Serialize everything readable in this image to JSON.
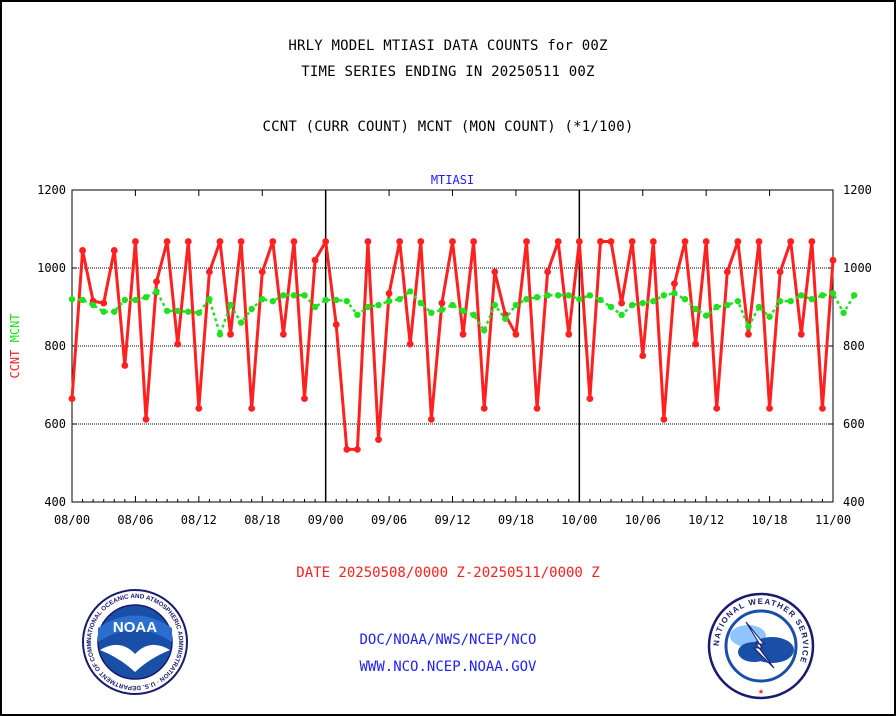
{
  "title_line1": "HRLY MODEL MTIASI DATA COUNTS for 00Z",
  "title_line2": "TIME SERIES ENDING IN 20250511 00Z",
  "subtitle": "CCNT (CURR COUNT) MCNT (MON COUNT) (*1/100)",
  "date_range": "DATE 20250508/0000 Z-20250511/0000 Z",
  "credit_line1": "DOC/NOAA/NWS/NCEP/NCO",
  "credit_line2": "WWW.NCO.NCEP.NOAA.GOV",
  "logos": {
    "left_icon": "noaa-seal-icon",
    "left_text": "NOAA",
    "left_ring_text": "NATIONAL OCEANIC AND ATMOSPHERIC ADMINISTRATION · U.S. DEPARTMENT OF COMMERCE",
    "right_icon": "national-weather-service-icon",
    "right_ring_text": "NATIONAL WEATHER SERVICE"
  },
  "colors": {
    "ccnt": "#ff2020",
    "mcnt": "#20e020",
    "panel_title": "#2020ff",
    "text": "#000000"
  },
  "chart_data": {
    "type": "line",
    "title": "MTIASI",
    "ylabel_parts": [
      {
        "text": "CCNT",
        "color": "#ff2020"
      },
      {
        "text": "MCNT",
        "color": "#20e020"
      }
    ],
    "ylim": [
      400,
      1200
    ],
    "yticks": [
      400,
      600,
      800,
      1000,
      1200
    ],
    "gridlines_y": [
      600,
      800,
      1000
    ],
    "x_tick_labels": [
      "08/00",
      "08/06",
      "08/12",
      "08/18",
      "09/00",
      "09/06",
      "09/12",
      "09/18",
      "10/00",
      "10/06",
      "10/12",
      "10/18",
      "11/00"
    ],
    "x_hours_range": [
      0,
      72
    ],
    "day_dividers_hours": [
      24,
      48
    ],
    "series": [
      {
        "name": "CCNT",
        "color": "#ff2020",
        "style": "solid",
        "values": [
          665,
          1045,
          915,
          910,
          1045,
          750,
          1068,
          612,
          965,
          1068,
          805,
          1068,
          640,
          990,
          1068,
          830,
          1068,
          640,
          990,
          1068,
          830,
          1068,
          665,
          1020,
          1068,
          855,
          535,
          535,
          1068,
          560,
          935,
          1068,
          805,
          1068,
          612,
          910,
          1068,
          830,
          1068,
          640,
          990,
          880,
          830,
          1068,
          640,
          990,
          1068,
          830,
          1068,
          665,
          1068,
          1068,
          910,
          1068,
          775,
          1068,
          612,
          960,
          1068,
          805,
          1068,
          640,
          990,
          1068,
          830,
          1068,
          640,
          990,
          1068,
          830,
          1068,
          640,
          1020
        ]
      },
      {
        "name": "MCNT",
        "color": "#20e020",
        "style": "dotted",
        "values": [
          920,
          918,
          905,
          888,
          888,
          918,
          918,
          925,
          940,
          890,
          890,
          888,
          885,
          920,
          830,
          905,
          860,
          895,
          920,
          915,
          930,
          930,
          930,
          900,
          918,
          918,
          915,
          880,
          900,
          905,
          915,
          920,
          940,
          910,
          885,
          893,
          905,
          890,
          880,
          840,
          905,
          870,
          905,
          920,
          925,
          930,
          930,
          930,
          920,
          930,
          918,
          900,
          880,
          905,
          910,
          915,
          930,
          935,
          920,
          895,
          878,
          900,
          905,
          915,
          850,
          900,
          875,
          915,
          915,
          930,
          920,
          930,
          935,
          885,
          930
        ]
      }
    ]
  }
}
